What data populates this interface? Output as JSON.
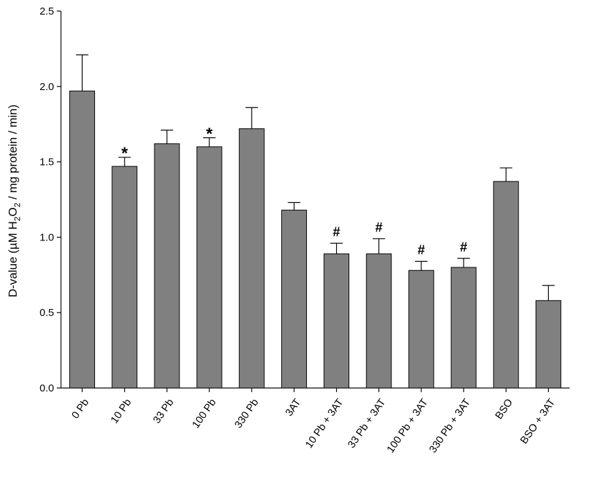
{
  "chart_data": {
    "type": "bar",
    "ylabel": {
      "prefix": "D-value (µM H",
      "sub1": "2",
      "mid": "O",
      "sub2": "2",
      "suffix": " / mg protein / min)"
    },
    "ylim": [
      0,
      2.5
    ],
    "yticks": [
      "0.0",
      "0.5",
      "1.0",
      "1.5",
      "2.0",
      "2.5"
    ],
    "categories": [
      "0 Pb",
      "10 Pb",
      "33 Pb",
      "100 Pb",
      "330 Pb",
      "3AT",
      "10 Pb + 3AT",
      "33 Pb + 3AT",
      "100 Pb + 3AT",
      "330 Pb + 3AT",
      "BSO",
      "BSO + 3AT"
    ],
    "values": [
      1.97,
      1.47,
      1.62,
      1.6,
      1.72,
      1.18,
      0.89,
      0.89,
      0.78,
      0.8,
      1.37,
      0.58
    ],
    "errors": [
      0.24,
      0.06,
      0.09,
      0.06,
      0.14,
      0.05,
      0.07,
      0.1,
      0.06,
      0.06,
      0.09,
      0.1
    ],
    "annotations": [
      "",
      "*",
      "",
      "*",
      "",
      "",
      "#",
      "#",
      "#",
      "#",
      "",
      ""
    ],
    "bar_color": "#808080",
    "grid": false
  }
}
